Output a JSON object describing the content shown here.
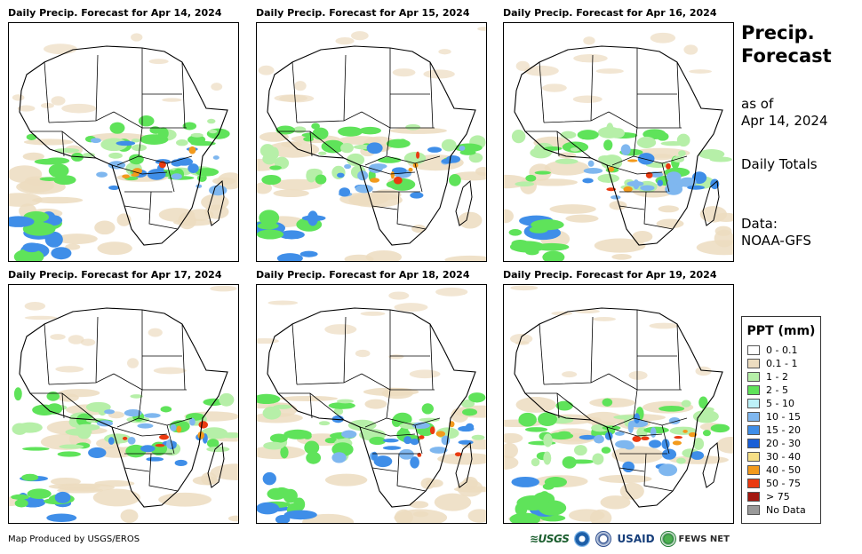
{
  "panels": [
    {
      "title": "Daily Precip. Forecast for Apr 14, 2024"
    },
    {
      "title": "Daily Precip. Forecast for Apr 15, 2024"
    },
    {
      "title": "Daily Precip. Forecast for Apr 16, 2024"
    },
    {
      "title": "Daily Precip. Forecast for Apr 17, 2024"
    },
    {
      "title": "Daily Precip. Forecast for Apr 18, 2024"
    },
    {
      "title": "Daily Precip. Forecast for Apr 19, 2024"
    }
  ],
  "side": {
    "title_line1": "Precip.",
    "title_line2": "Forecast",
    "asof_line1": "as of",
    "asof_line2": "Apr 14, 2024",
    "daily": "Daily Totals",
    "data_line1": "Data:",
    "data_line2": "NOAA-GFS"
  },
  "legend": {
    "title": "PPT (mm)",
    "items": [
      {
        "label": "0 - 0.1",
        "color": "#ffffff"
      },
      {
        "label": "0.1 - 1",
        "color": "#ecdcc0"
      },
      {
        "label": "1 - 2",
        "color": "#b6efa8"
      },
      {
        "label": "2 - 5",
        "color": "#5fe35a"
      },
      {
        "label": "5 - 10",
        "color": "#bdf1f8"
      },
      {
        "label": "10 - 15",
        "color": "#7fb7ef"
      },
      {
        "label": "15 - 20",
        "color": "#3f8ee8"
      },
      {
        "label": "20 - 30",
        "color": "#1a5fd6"
      },
      {
        "label": "30 - 40",
        "color": "#f6df86"
      },
      {
        "label": "40 - 50",
        "color": "#f39a1c"
      },
      {
        "label": "50 - 75",
        "color": "#ea3a10"
      },
      {
        "label": "> 75",
        "color": "#a3170f"
      },
      {
        "label": "No Data",
        "color": "#9a9a9a"
      }
    ]
  },
  "footer": {
    "credit": "Map Produced by USGS/EROS"
  },
  "logos": {
    "usgs": "≋USGS",
    "usaid": "USAID",
    "fews": "FEWS NET"
  }
}
